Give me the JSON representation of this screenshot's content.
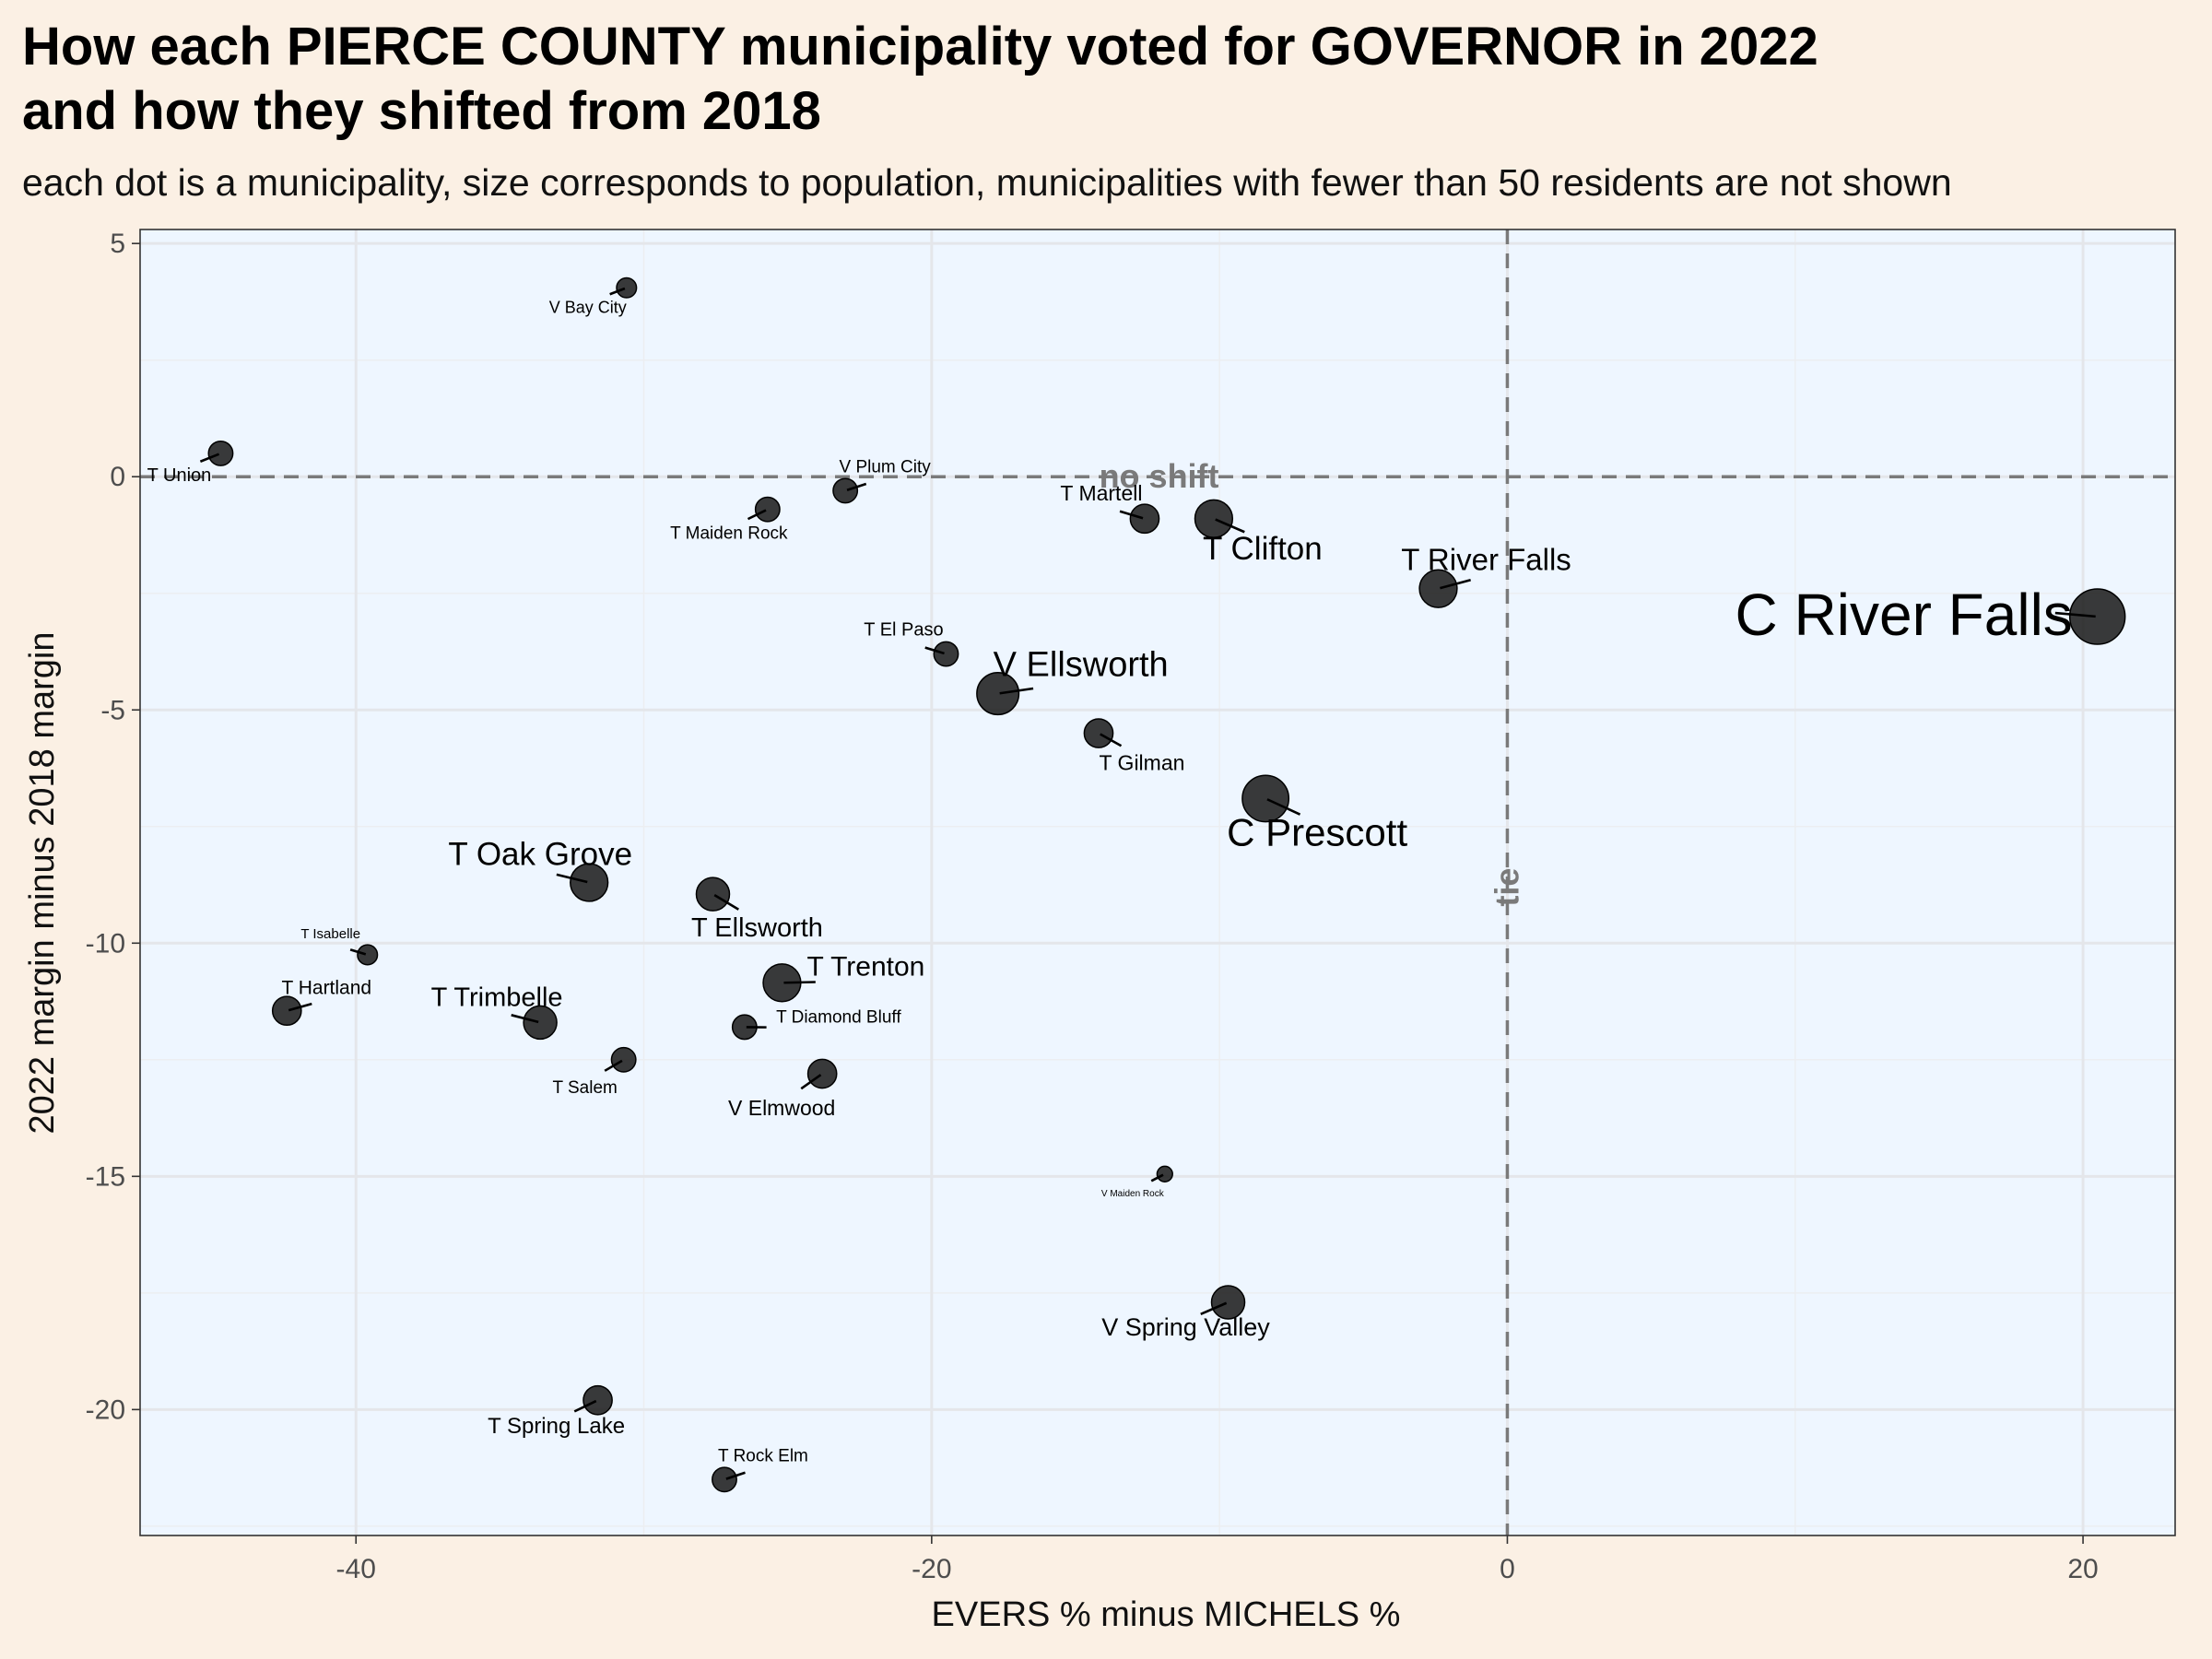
{
  "chart_data": {
    "type": "scatter",
    "title_line1": "How each PIERCE COUNTY municipality voted for GOVERNOR in 2022",
    "title_line2": "and how they shifted from 2018",
    "subtitle": "each dot is a municipality, size corresponds to population, municipalities with fewer than 50 residents are not shown",
    "xlabel": "EVERS % minus MICHELS %",
    "ylabel": "2022 margin minus 2018 margin",
    "xlim": [
      -47.5,
      23.2
    ],
    "ylim": [
      -22.7,
      5.3
    ],
    "x_ticks": [
      -40,
      -20,
      0,
      20
    ],
    "x_tick_labels": [
      "-40",
      "-20",
      "0",
      "20"
    ],
    "y_ticks": [
      5,
      0,
      -5,
      -10,
      -15,
      -20
    ],
    "y_tick_labels": [
      "5",
      "0",
      "-5",
      "-10",
      "-15",
      "-20"
    ],
    "grid": true,
    "colors": {
      "panel": "#EEF6FF",
      "background": "#FBF0E4",
      "point": "#1a1a1a",
      "reference": "#7a7a7a"
    },
    "reference_lines": {
      "horizontal_label": "no shift",
      "vertical_label": "tie"
    },
    "points": [
      {
        "name": "V Bay City",
        "x": -30.6,
        "y": 4.05,
        "size": 2
      },
      {
        "name": "T Union",
        "x": -44.7,
        "y": 0.5,
        "size": 3
      },
      {
        "name": "V Plum City",
        "x": -23.0,
        "y": -0.3,
        "size": 3
      },
      {
        "name": "T Maiden Rock",
        "x": -25.7,
        "y": -0.7,
        "size": 3
      },
      {
        "name": "T Martell",
        "x": -12.6,
        "y": -0.9,
        "size": 4
      },
      {
        "name": "T Clifton",
        "x": -10.2,
        "y": -0.9,
        "size": 6
      },
      {
        "name": "T River Falls",
        "x": -2.4,
        "y": -2.4,
        "size": 6
      },
      {
        "name": "C River Falls",
        "x": 20.5,
        "y": -3.0,
        "size": 10
      },
      {
        "name": "T El Paso",
        "x": -19.5,
        "y": -3.8,
        "size": 3
      },
      {
        "name": "V Ellsworth",
        "x": -17.7,
        "y": -4.65,
        "size": 7
      },
      {
        "name": "T Gilman",
        "x": -14.2,
        "y": -5.5,
        "size": 4
      },
      {
        "name": "C Prescott",
        "x": -8.4,
        "y": -6.9,
        "size": 8
      },
      {
        "name": "T Oak Grove",
        "x": -31.9,
        "y": -8.7,
        "size": 6
      },
      {
        "name": "T Ellsworth",
        "x": -27.6,
        "y": -8.95,
        "size": 5
      },
      {
        "name": "T Isabelle",
        "x": -39.6,
        "y": -10.25,
        "size": 2
      },
      {
        "name": "T Trenton",
        "x": -25.2,
        "y": -10.85,
        "size": 6
      },
      {
        "name": "T Hartland",
        "x": -42.4,
        "y": -11.45,
        "size": 4
      },
      {
        "name": "T Trimbelle",
        "x": -33.6,
        "y": -11.7,
        "size": 5
      },
      {
        "name": "T Diamond Bluff",
        "x": -26.5,
        "y": -11.8,
        "size": 3
      },
      {
        "name": "T Salem",
        "x": -30.7,
        "y": -12.5,
        "size": 3
      },
      {
        "name": "V Elmwood",
        "x": -23.8,
        "y": -12.8,
        "size": 4
      },
      {
        "name": "V Maiden Rock",
        "x": -11.9,
        "y": -14.95,
        "size": 1
      },
      {
        "name": "V Spring Valley",
        "x": -9.7,
        "y": -17.7,
        "size": 5
      },
      {
        "name": "T Spring Lake",
        "x": -31.6,
        "y": -19.8,
        "size": 4
      },
      {
        "name": "T Rock Elm",
        "x": -27.2,
        "y": -21.5,
        "size": 3
      }
    ]
  }
}
